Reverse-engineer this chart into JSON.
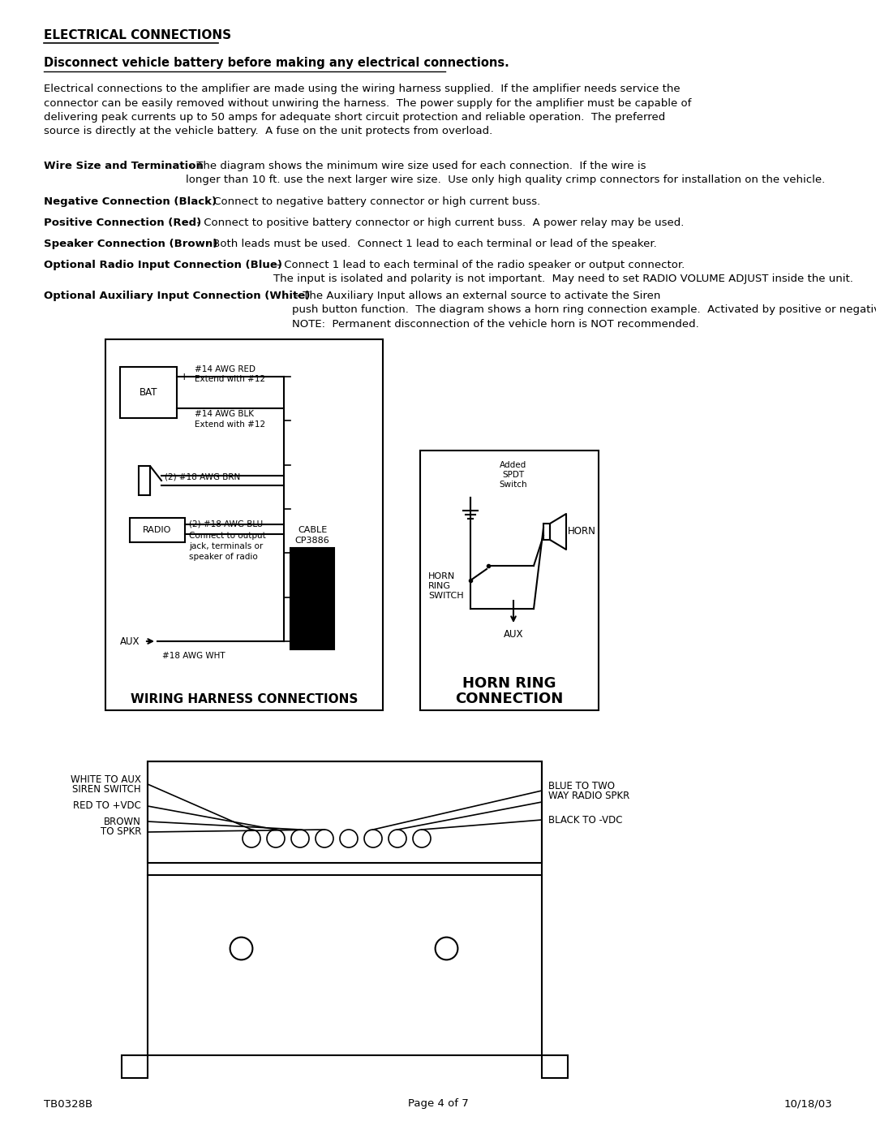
{
  "bg_color": "#ffffff",
  "text_color": "#000000",
  "title": "ELECTRICAL CONNECTIONS",
  "subtitle": "Disconnect vehicle battery before making any electrical connections.",
  "para1": "Electrical connections to the amplifier are made using the wiring harness supplied.  If the amplifier needs service the\nconnector can be easily removed without unwiring the harness.  The power supply for the amplifier must be capable of\ndelivering peak currents up to 50 amps for adequate short circuit protection and reliable operation.  The preferred\nsource is directly at the vehicle battery.  A fuse on the unit protects from overload.",
  "para2_bold": "Wire Size and Termination",
  "para2_rest": " - The diagram shows the minimum wire size used for each connection.  If the wire is\nlonger than 10 ft. use the next larger wire size.  Use only high quality crimp connectors for installation on the vehicle.",
  "para3_bold": "Negative Connection (Black)",
  "para3_rest": " - Connect to negative battery connector or high current buss.",
  "para4_bold": "Positive Connection (Red)",
  "para4_rest": " - Connect to positive battery connector or high current buss.  A power relay may be used.",
  "para5_bold": "Speaker Connection (Brown)",
  "para5_rest": " - Both leads must be used.  Connect 1 lead to each terminal or lead of the speaker.",
  "para6_bold": "Optional Radio Input Connection (Blue)",
  "para6_rest": " - Connect 1 lead to each terminal of the radio speaker or output connector.\nThe input is isolated and polarity is not important.  May need to set RADIO VOLUME ADJUST inside the unit.",
  "para7_bold": "Optional Auxiliary Input Connection (White)",
  "para7_rest": " - The Auxiliary Input allows an external source to activate the Siren\npush button function.  The diagram shows a horn ring connection example.  Activated by positive or negative input.\nNOTE:  Permanent disconnection of the vehicle horn is NOT recommended.",
  "footer_left": "TB0328B",
  "footer_center": "Page 4 of 7",
  "footer_right": "10/18/03"
}
